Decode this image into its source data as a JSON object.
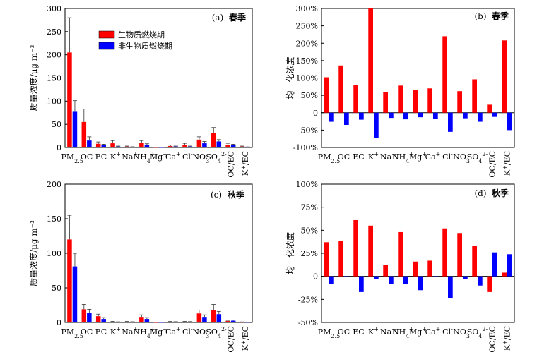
{
  "legend": {
    "biomass_label": "生物质燃烧期",
    "non_biomass_label": "非生物质燃烧期",
    "biomass_color": "#ff0000",
    "non_biomass_color": "#0000ff"
  },
  "chart_data": [
    {
      "type": "bar",
      "panel_label": "(a)",
      "season": "春季",
      "ylabel": "质量浓度/μg m⁻³",
      "ylim": [
        0,
        300
      ],
      "yticks": [
        "0",
        "50",
        "100",
        "150",
        "200",
        "250",
        "300"
      ],
      "categories": [
        "PM2.5",
        "OC",
        "EC",
        "K+",
        "Na+",
        "NH4+",
        "Mg+",
        "Ca+",
        "Cl-",
        "NO3-",
        "SO42-",
        "OC/EC",
        "K+/EC"
      ],
      "series": [
        {
          "name": "生物质燃烧期",
          "values": [
            205,
            55,
            8,
            9,
            2,
            10,
            0.5,
            3,
            5,
            17,
            31,
            6,
            2
          ],
          "errors": [
            75,
            28,
            4,
            6,
            1,
            5,
            0.3,
            2,
            4,
            6,
            12,
            3,
            1
          ]
        },
        {
          "name": "非生物质燃烧期",
          "values": [
            77,
            15,
            5,
            2,
            1,
            6,
            0.3,
            2,
            2,
            9,
            13,
            5,
            0.8
          ],
          "errors": [
            24,
            8,
            2,
            1,
            0.5,
            2,
            0.2,
            1,
            1,
            4,
            4,
            2,
            0.5
          ]
        }
      ]
    },
    {
      "type": "bar",
      "panel_label": "(b)",
      "season": "春季",
      "ylabel": "均一化浓度",
      "ylim": [
        -100,
        300
      ],
      "yticks": [
        "-100%",
        "-50%",
        "0",
        "50%",
        "100%",
        "150%",
        "200%",
        "250%",
        "300%"
      ],
      "categories": [
        "PM2.5",
        "OC",
        "EC",
        "K+",
        "Na+",
        "NH4+",
        "Mg+",
        "Ca+",
        "Cl-",
        "NO3-",
        "SO42-",
        "OC/EC",
        "K+/EC"
      ],
      "series": [
        {
          "name": "生物质燃烧期",
          "values": [
            102,
            136,
            80,
            300,
            60,
            78,
            66,
            70,
            220,
            62,
            96,
            23,
            208
          ]
        },
        {
          "name": "非生物质燃烧期",
          "values": [
            -26,
            -35,
            -20,
            -72,
            -15,
            -19,
            -13,
            -17,
            -55,
            -16,
            -26,
            -12,
            -50
          ]
        }
      ]
    },
    {
      "type": "bar",
      "panel_label": "(c)",
      "season": "秋季",
      "ylabel": "质量浓度/μg m⁻³",
      "ylim": [
        0,
        200
      ],
      "yticks": [
        "0",
        "50",
        "100",
        "150",
        "200"
      ],
      "categories": [
        "PM2.5",
        "OC",
        "EC",
        "K+",
        "Na+",
        "NH4+",
        "Mg+",
        "Ca+",
        "Cl-",
        "NO3-",
        "SO42-",
        "OC/EC",
        "K+/EC"
      ],
      "series": [
        {
          "name": "生物质燃烧期",
          "values": [
            120,
            19,
            9,
            1,
            1,
            8,
            0.3,
            1,
            1,
            13,
            18,
            2,
            0.5
          ]
        },
        {
          "name": "非生物质燃烧期",
          "values": [
            81,
            14,
            5,
            0.6,
            0.7,
            5,
            0.2,
            0.8,
            0.8,
            8,
            12,
            2.5,
            0.4
          ]
        }
      ],
      "errors": [
        [
          35,
          7,
          3,
          0.5,
          0.4,
          3,
          0.1,
          0.4,
          0.5,
          5,
          8,
          1,
          0.3
        ],
        [
          19,
          5,
          2,
          0.3,
          0.3,
          2,
          0.1,
          0.3,
          0.4,
          3,
          4,
          1,
          0.2
        ]
      ]
    },
    {
      "type": "bar",
      "panel_label": "(d)",
      "season": "秋季",
      "ylabel": "均一化浓度",
      "ylim": [
        -50,
        100
      ],
      "yticks": [
        "-50%",
        "-25%",
        "0",
        "25%",
        "50%",
        "75%",
        "100%"
      ],
      "categories": [
        "PM2.5",
        "OC",
        "EC",
        "K+",
        "Na+",
        "NH4+",
        "Mg+",
        "Ca+",
        "Cl-",
        "NO3-",
        "SO42-",
        "OC/EC",
        "K+/EC"
      ],
      "series": [
        {
          "name": "生物质燃烧期",
          "values": [
            37,
            38,
            61,
            55,
            12,
            48,
            16,
            17,
            52,
            47,
            33,
            -17,
            4
          ]
        },
        {
          "name": "非生物质燃烧期",
          "values": [
            -8,
            -1,
            -17,
            -3,
            -8,
            -8,
            -15,
            -1,
            -24,
            -3,
            -10,
            26,
            24
          ]
        }
      ]
    }
  ]
}
